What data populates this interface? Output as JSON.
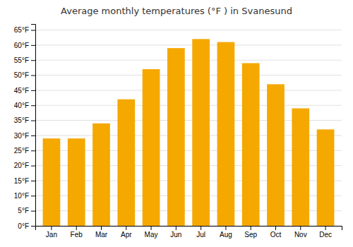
{
  "chart_data": {
    "type": "bar",
    "title": "Average monthly temperatures (°F ) in Svanesund",
    "categories": [
      "Jan",
      "Feb",
      "Mar",
      "Apr",
      "May",
      "Jun",
      "Jul",
      "Aug",
      "Sep",
      "Oct",
      "Nov",
      "Dec"
    ],
    "values": [
      29,
      29,
      34,
      42,
      52,
      59,
      62,
      61,
      54,
      47,
      39,
      32
    ],
    "color": "#F5A800",
    "ylim": [
      0,
      67
    ],
    "yticks": [
      {
        "value": 0,
        "label": "0°F"
      },
      {
        "value": 5,
        "label": "5°F"
      },
      {
        "value": 10,
        "label": "10°F"
      },
      {
        "value": 15,
        "label": "15°F"
      },
      {
        "value": 20,
        "label": "20°F"
      },
      {
        "value": 25,
        "label": "25°F"
      },
      {
        "value": 30,
        "label": "30°F"
      },
      {
        "value": 35,
        "label": "35°F"
      },
      {
        "value": 40,
        "label": "40°F"
      },
      {
        "value": 45,
        "label": "45°F"
      },
      {
        "value": 50,
        "label": "50°F"
      },
      {
        "value": 55,
        "label": "55°F"
      },
      {
        "value": 60,
        "label": "60°F"
      },
      {
        "value": 65,
        "label": "65°F"
      }
    ],
    "grid": true
  }
}
